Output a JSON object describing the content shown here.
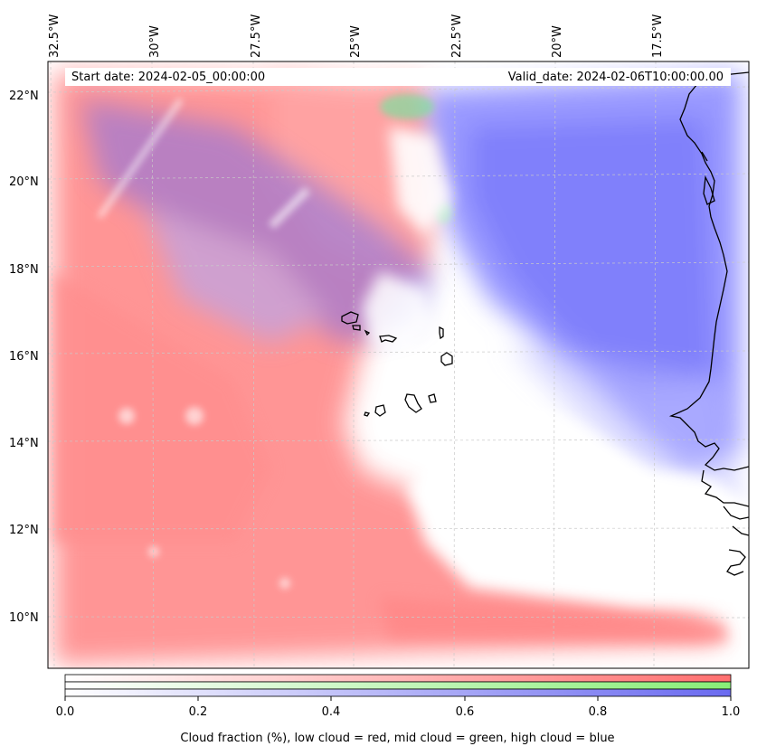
{
  "map": {
    "lon_labels": [
      "32.5°W",
      "30°W",
      "27.5°W",
      "25°W",
      "22.5°W",
      "20°W",
      "17.5°W"
    ],
    "lat_labels": [
      "22°N",
      "20°N",
      "18°N",
      "16°N",
      "14°N",
      "12°N",
      "10°N"
    ],
    "start_date": "Start date: 2024-02-05_00:00:00",
    "valid_date": "Valid_date: 2024-02-06T10:00:00.00",
    "layer_colors": {
      "low": "#ff8080",
      "mid": "#80e080",
      "high": "#7070ff",
      "coast": "#000000"
    }
  },
  "colorbar": {
    "ticks": [
      "0.0",
      "0.2",
      "0.4",
      "0.6",
      "0.8",
      "1.0"
    ],
    "label": "Cloud fraction (%), low cloud = red, mid cloud = green, high cloud = blue",
    "bands": [
      {
        "name": "low cloud",
        "color": "#ff6f6f"
      },
      {
        "name": "mid cloud",
        "color": "#88ee77"
      },
      {
        "name": "high cloud",
        "color": "#6a6af0"
      }
    ]
  }
}
